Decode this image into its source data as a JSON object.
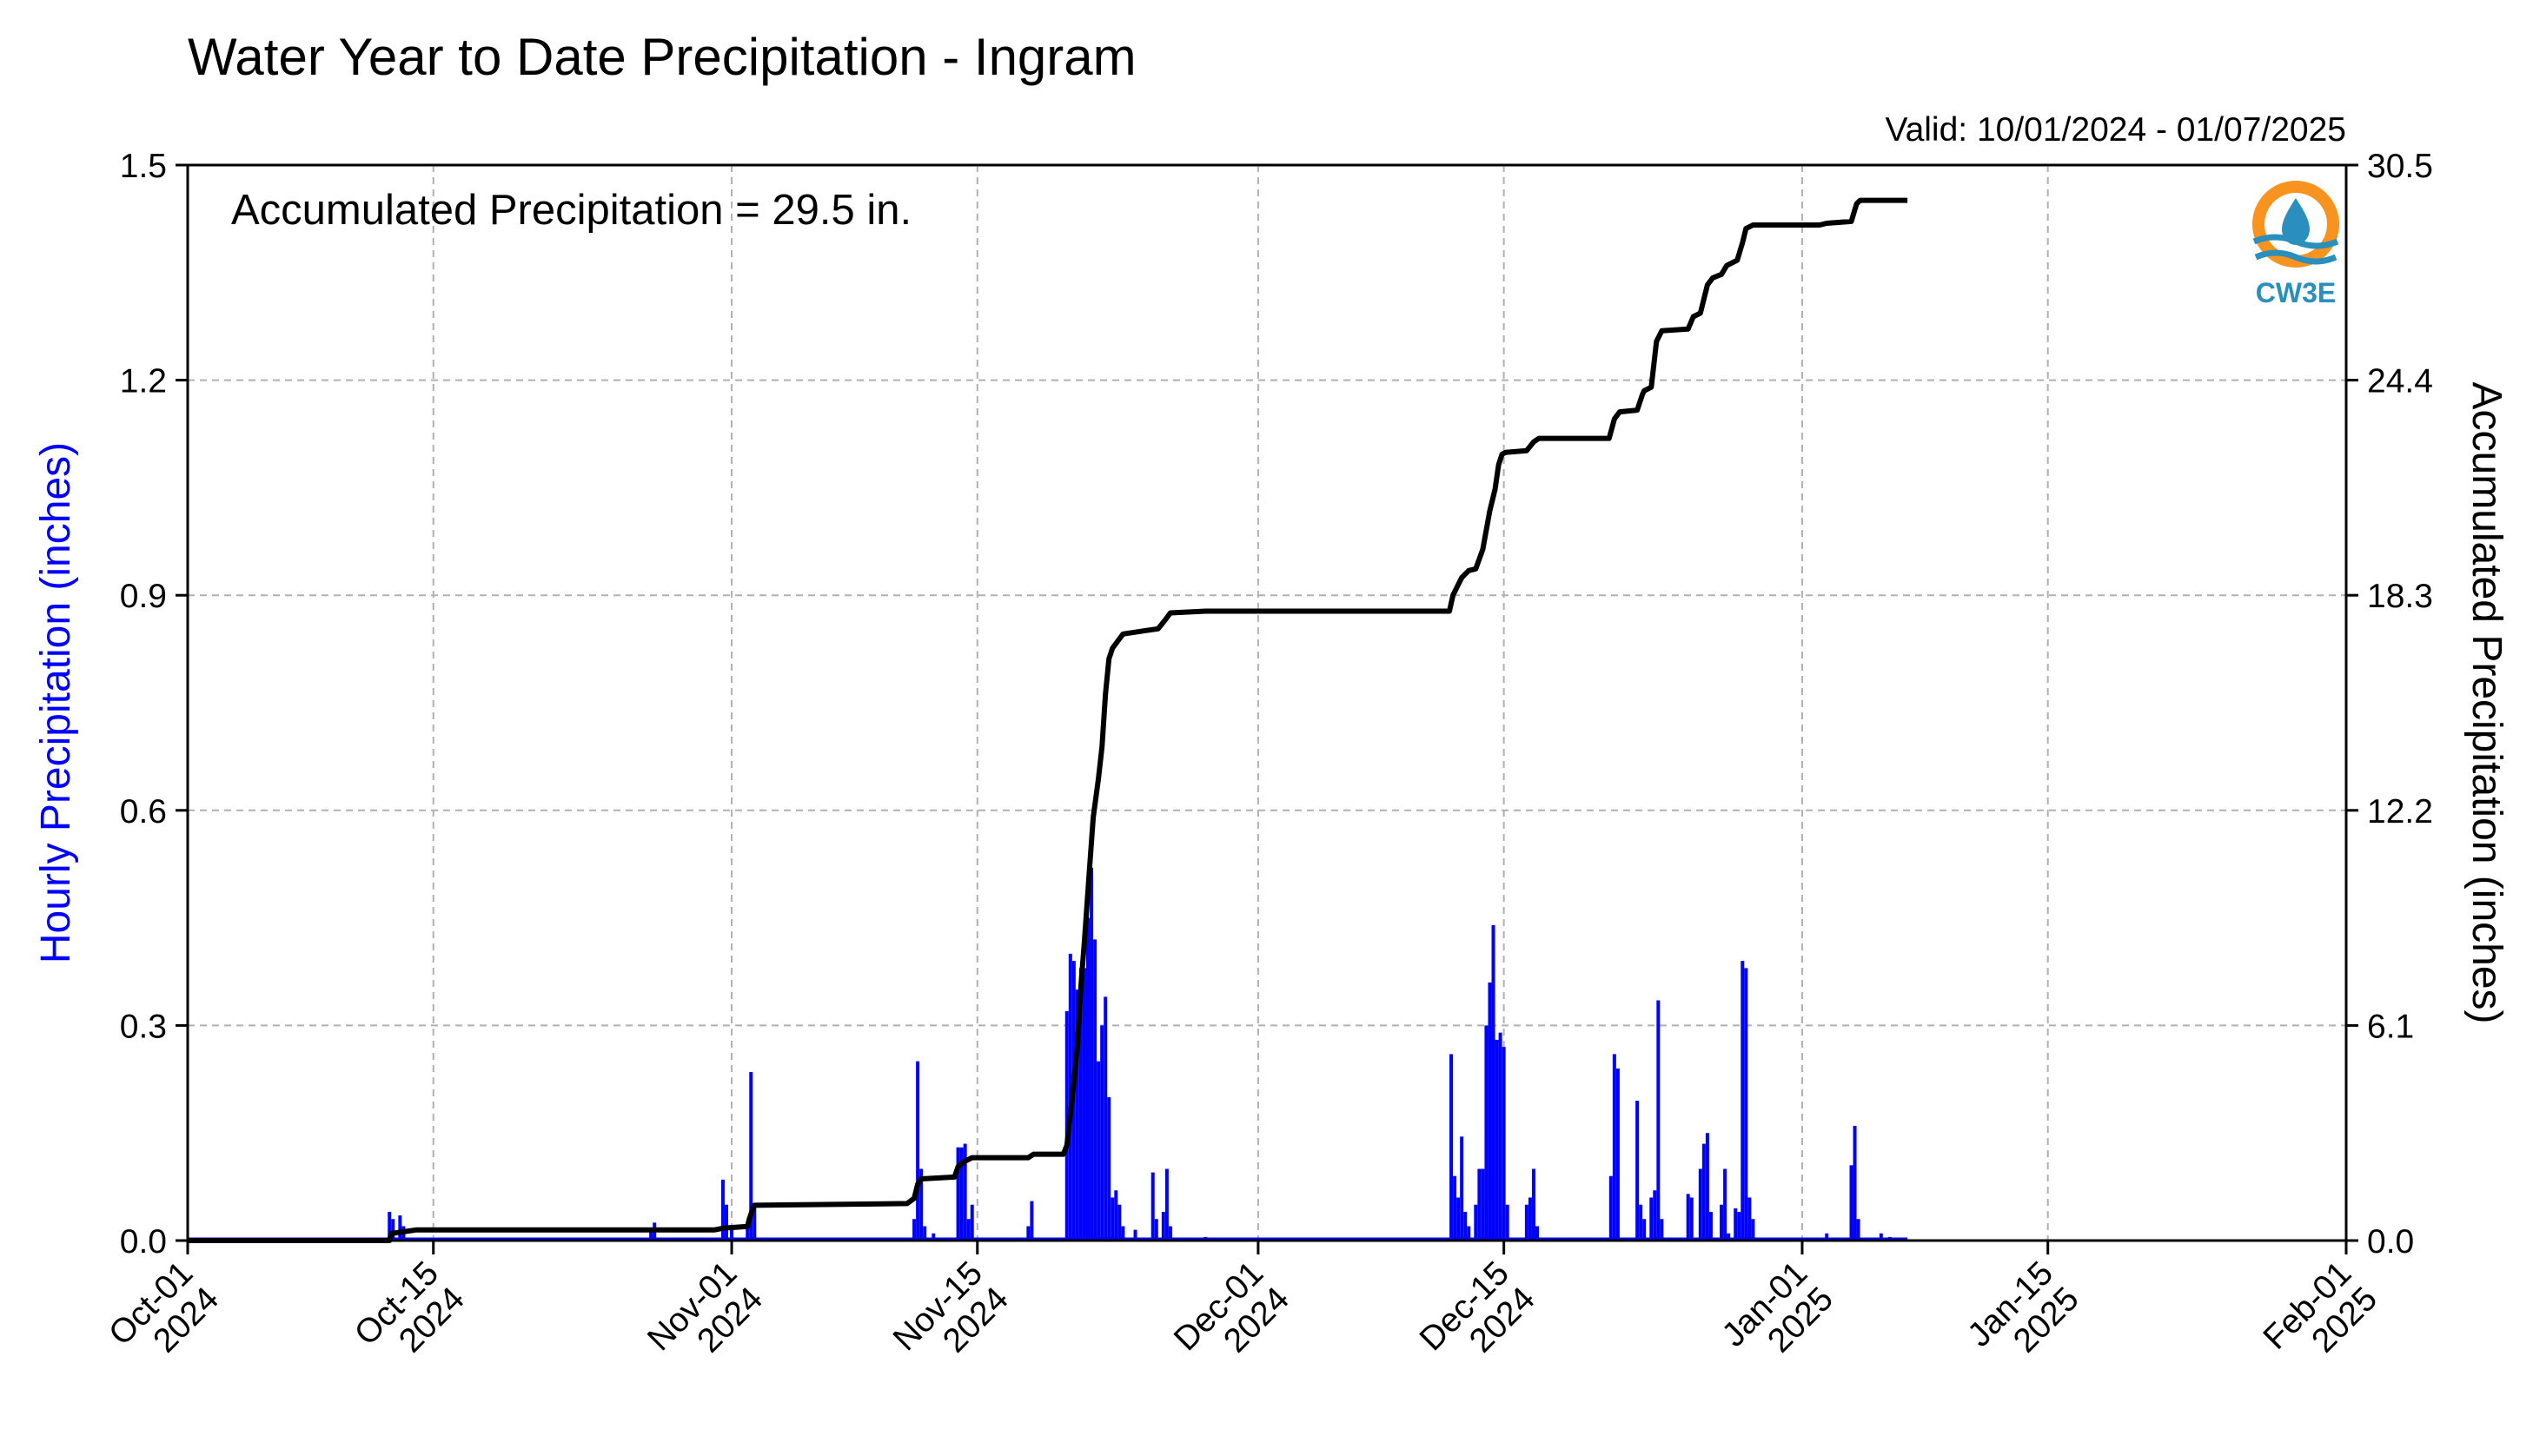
{
  "chart_data": {
    "type": "bar",
    "title": "Water Year to Date Precipitation - Ingram",
    "valid_text": "Valid: 10/01/2024 - 01/07/2025",
    "annotation": "Accumulated Precipitation = 29.5 in.",
    "ylabel": "Hourly Precipitation (inches)",
    "y2label": "Accumulated Precipitation (inches)",
    "ylim": [
      0,
      1.5
    ],
    "y2lim": [
      0,
      30.5
    ],
    "yticks": [
      "0.0",
      "0.3",
      "0.6",
      "0.9",
      "1.2",
      "1.5"
    ],
    "y2ticks": [
      "0.0",
      "6.1",
      "12.2",
      "18.3",
      "24.4",
      "30.5"
    ],
    "xlim_days": [
      0,
      123
    ],
    "xticks": [
      {
        "d": 0,
        "l1": "Oct-01",
        "l2": "2024"
      },
      {
        "d": 14,
        "l1": "Oct-15",
        "l2": "2024"
      },
      {
        "d": 31,
        "l1": "Nov-01",
        "l2": "2024"
      },
      {
        "d": 45,
        "l1": "Nov-15",
        "l2": "2024"
      },
      {
        "d": 61,
        "l1": "Dec-01",
        "l2": "2024"
      },
      {
        "d": 75,
        "l1": "Dec-15",
        "l2": "2024"
      },
      {
        "d": 92,
        "l1": "Jan-01",
        "l2": "2025"
      },
      {
        "d": 106,
        "l1": "Jan-15",
        "l2": "2025"
      },
      {
        "d": 123,
        "l1": "Feb-01",
        "l2": "2025"
      }
    ],
    "series": [
      {
        "name": "Hourly Precipitation",
        "color": "#0000ff",
        "points": [
          [
            11.5,
            0.04
          ],
          [
            11.7,
            0.03
          ],
          [
            12.1,
            0.035
          ],
          [
            12.3,
            0.02
          ],
          [
            26.4,
            0.015
          ],
          [
            26.6,
            0.025
          ],
          [
            30.5,
            0.085
          ],
          [
            30.7,
            0.05
          ],
          [
            31.0,
            0.02
          ],
          [
            31.9,
            0.02
          ],
          [
            32.1,
            0.235
          ],
          [
            32.3,
            0.05
          ],
          [
            41.4,
            0.03
          ],
          [
            41.6,
            0.25
          ],
          [
            41.8,
            0.1
          ],
          [
            42.0,
            0.02
          ],
          [
            42.5,
            0.01
          ],
          [
            43.9,
            0.13
          ],
          [
            44.1,
            0.13
          ],
          [
            44.3,
            0.135
          ],
          [
            44.5,
            0.03
          ],
          [
            44.7,
            0.05
          ],
          [
            47.9,
            0.02
          ],
          [
            48.1,
            0.055
          ],
          [
            50.1,
            0.32
          ],
          [
            50.3,
            0.4
          ],
          [
            50.5,
            0.39
          ],
          [
            50.7,
            0.35
          ],
          [
            50.9,
            0.38
          ],
          [
            51.1,
            0.38
          ],
          [
            51.3,
            0.45
          ],
          [
            51.5,
            0.52
          ],
          [
            51.7,
            0.42
          ],
          [
            51.9,
            0.25
          ],
          [
            52.1,
            0.3
          ],
          [
            52.3,
            0.34
          ],
          [
            52.5,
            0.2
          ],
          [
            52.7,
            0.06
          ],
          [
            52.9,
            0.07
          ],
          [
            53.1,
            0.05
          ],
          [
            53.3,
            0.02
          ],
          [
            54.0,
            0.015
          ],
          [
            55.0,
            0.095
          ],
          [
            55.2,
            0.03
          ],
          [
            55.6,
            0.04
          ],
          [
            55.8,
            0.1
          ],
          [
            56.0,
            0.02
          ],
          [
            58.0,
            0.005
          ],
          [
            72.0,
            0.26
          ],
          [
            72.2,
            0.09
          ],
          [
            72.4,
            0.06
          ],
          [
            72.6,
            0.145
          ],
          [
            72.8,
            0.04
          ],
          [
            73.0,
            0.02
          ],
          [
            73.4,
            0.05
          ],
          [
            73.6,
            0.1
          ],
          [
            73.8,
            0.1
          ],
          [
            74.0,
            0.3
          ],
          [
            74.2,
            0.36
          ],
          [
            74.4,
            0.44
          ],
          [
            74.6,
            0.28
          ],
          [
            74.8,
            0.29
          ],
          [
            75.0,
            0.27
          ],
          [
            75.2,
            0.05
          ],
          [
            76.3,
            0.05
          ],
          [
            76.5,
            0.06
          ],
          [
            76.7,
            0.1
          ],
          [
            76.9,
            0.02
          ],
          [
            81.1,
            0.09
          ],
          [
            81.3,
            0.26
          ],
          [
            81.5,
            0.24
          ],
          [
            82.6,
            0.195
          ],
          [
            82.8,
            0.05
          ],
          [
            83.0,
            0.03
          ],
          [
            83.4,
            0.06
          ],
          [
            83.6,
            0.07
          ],
          [
            83.8,
            0.335
          ],
          [
            84.0,
            0.03
          ],
          [
            85.5,
            0.065
          ],
          [
            85.7,
            0.06
          ],
          [
            86.2,
            0.1
          ],
          [
            86.4,
            0.135
          ],
          [
            86.6,
            0.15
          ],
          [
            86.8,
            0.04
          ],
          [
            87.4,
            0.05
          ],
          [
            87.6,
            0.1
          ],
          [
            87.8,
            0.01
          ],
          [
            88.2,
            0.045
          ],
          [
            88.4,
            0.04
          ],
          [
            88.6,
            0.39
          ],
          [
            88.8,
            0.38
          ],
          [
            89.0,
            0.06
          ],
          [
            89.2,
            0.03
          ],
          [
            93.4,
            0.01
          ],
          [
            94.8,
            0.105
          ],
          [
            95.0,
            0.16
          ],
          [
            95.2,
            0.03
          ],
          [
            96.5,
            0.01
          ],
          [
            97.0,
            0.005
          ]
        ]
      },
      {
        "name": "Accumulated Precipitation",
        "color": "#000000",
        "points": [
          [
            0,
            0
          ],
          [
            11.5,
            0
          ],
          [
            11.6,
            0.2
          ],
          [
            12.3,
            0.25
          ],
          [
            13.0,
            0.3
          ],
          [
            30.0,
            0.3
          ],
          [
            30.5,
            0.35
          ],
          [
            31.9,
            0.4
          ],
          [
            32.0,
            0.6
          ],
          [
            32.2,
            0.9
          ],
          [
            32.3,
            1.0
          ],
          [
            41.0,
            1.05
          ],
          [
            41.4,
            1.2
          ],
          [
            41.6,
            1.6
          ],
          [
            41.8,
            1.75
          ],
          [
            43.7,
            1.8
          ],
          [
            43.9,
            2.1
          ],
          [
            44.3,
            2.25
          ],
          [
            44.7,
            2.35
          ],
          [
            47.9,
            2.35
          ],
          [
            48.2,
            2.45
          ],
          [
            49.9,
            2.45
          ],
          [
            50.1,
            2.7
          ],
          [
            50.4,
            4.0
          ],
          [
            50.7,
            5.5
          ],
          [
            50.9,
            7.2
          ],
          [
            51.1,
            8.5
          ],
          [
            51.4,
            10.6
          ],
          [
            51.6,
            12.0
          ],
          [
            51.9,
            13.1
          ],
          [
            52.1,
            14.0
          ],
          [
            52.3,
            15.5
          ],
          [
            52.5,
            16.5
          ],
          [
            52.7,
            16.8
          ],
          [
            53.0,
            17.0
          ],
          [
            53.3,
            17.2
          ],
          [
            54.6,
            17.3
          ],
          [
            55.3,
            17.35
          ],
          [
            55.7,
            17.6
          ],
          [
            56.0,
            17.8
          ],
          [
            58.0,
            17.85
          ],
          [
            71.9,
            17.85
          ],
          [
            72.1,
            18.3
          ],
          [
            72.3,
            18.5
          ],
          [
            72.6,
            18.8
          ],
          [
            73.0,
            19.0
          ],
          [
            73.4,
            19.05
          ],
          [
            73.8,
            19.6
          ],
          [
            74.2,
            20.7
          ],
          [
            74.5,
            21.3
          ],
          [
            74.7,
            22.0
          ],
          [
            74.9,
            22.3
          ],
          [
            75.1,
            22.35
          ],
          [
            76.3,
            22.4
          ],
          [
            76.7,
            22.65
          ],
          [
            77.0,
            22.75
          ],
          [
            81.0,
            22.75
          ],
          [
            81.3,
            23.3
          ],
          [
            81.6,
            23.5
          ],
          [
            82.6,
            23.55
          ],
          [
            82.9,
            24.0
          ],
          [
            83.0,
            24.1
          ],
          [
            83.4,
            24.2
          ],
          [
            83.7,
            25.5
          ],
          [
            84.0,
            25.8
          ],
          [
            85.5,
            25.85
          ],
          [
            85.8,
            26.2
          ],
          [
            86.2,
            26.3
          ],
          [
            86.6,
            27.1
          ],
          [
            86.9,
            27.3
          ],
          [
            87.4,
            27.4
          ],
          [
            87.7,
            27.65
          ],
          [
            88.3,
            27.8
          ],
          [
            88.6,
            28.3
          ],
          [
            88.8,
            28.7
          ],
          [
            89.2,
            28.8
          ],
          [
            93.0,
            28.8
          ],
          [
            93.4,
            28.85
          ],
          [
            94.8,
            28.9
          ],
          [
            95.1,
            29.4
          ],
          [
            95.3,
            29.5
          ],
          [
            98.0,
            29.5
          ]
        ]
      }
    ]
  },
  "logo": {
    "text": "CW3E",
    "colors": {
      "orange": "#f7931e",
      "blue": "#2a8fbd"
    }
  }
}
